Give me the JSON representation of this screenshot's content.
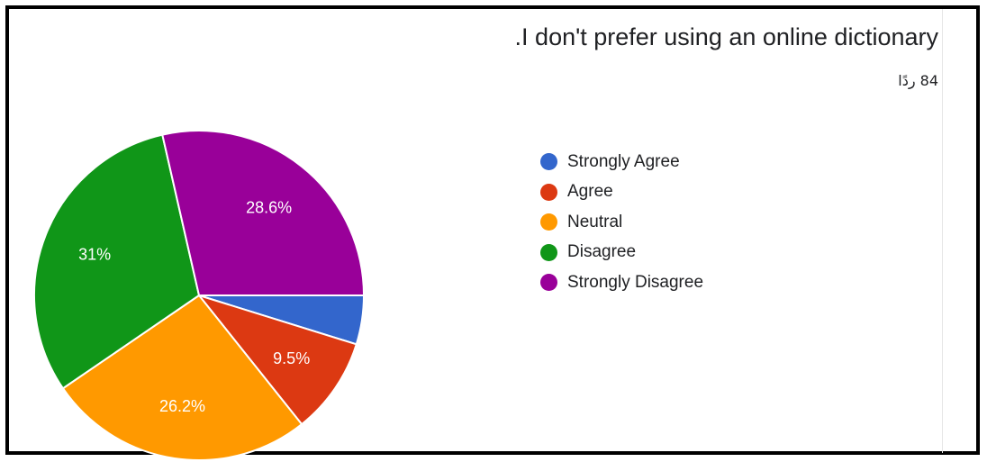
{
  "title": ".I don't prefer using an online dictionary",
  "response_count": "84 ردًا",
  "chart_data": {
    "type": "pie",
    "categories": [
      "Strongly Agree",
      "Agree",
      "Neutral",
      "Disagree",
      "Strongly Disagree"
    ],
    "values": [
      4.8,
      9.5,
      26.2,
      31.0,
      28.6
    ],
    "data_labels": [
      "",
      "9.5%",
      "26.2%",
      "31%",
      "28.6%"
    ],
    "colors": [
      "#3366cc",
      "#dc3912",
      "#ff9900",
      "#109618",
      "#990099"
    ],
    "legend_position": "right",
    "start_angle": "east, clockwise"
  }
}
